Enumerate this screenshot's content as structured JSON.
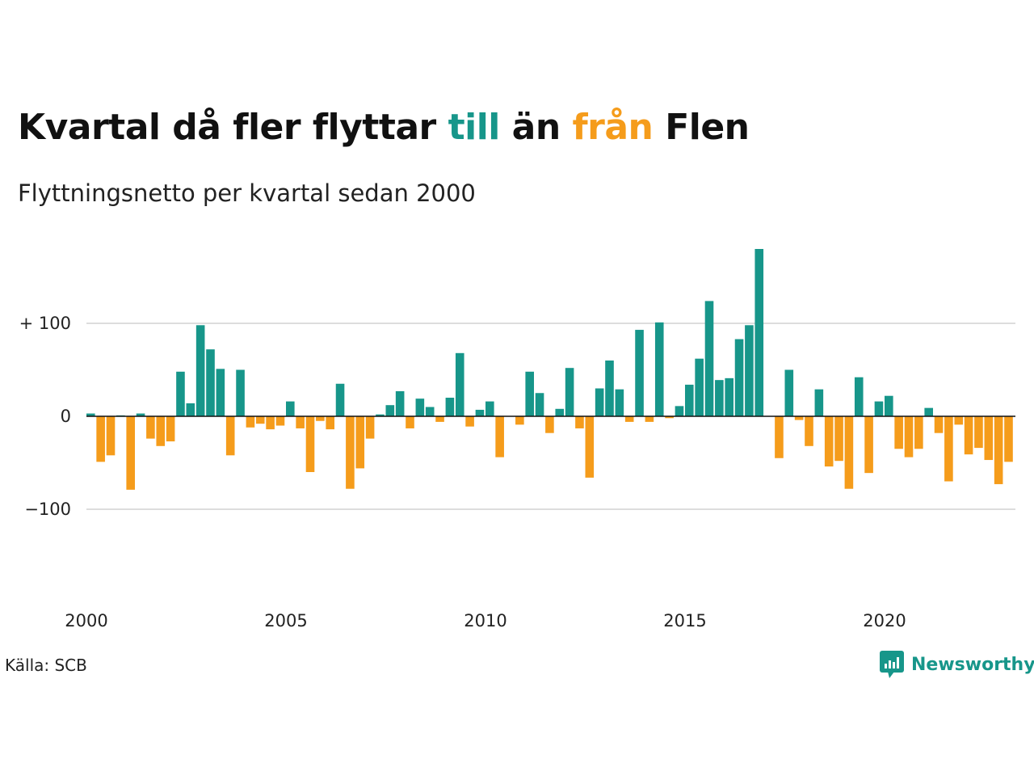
{
  "header": {
    "title_pre": "Kvartal då fler flyttar ",
    "title_till": "till",
    "title_mid": " än ",
    "title_fran": "från",
    "title_post": " Flen",
    "subtitle": "Flyttningsnetto per kvartal sedan 2000"
  },
  "footer": {
    "source": "Källa: SCB",
    "brand": "Newsworthy",
    "brand_icon": "bar-chart-speech-bubble-icon"
  },
  "colors": {
    "positive": "#17968a",
    "negative": "#f59c1b",
    "grid": "#dddddd",
    "zero_line": "#111111"
  },
  "chart_data": {
    "type": "bar",
    "title": "Kvartal då fler flyttar till än från Flen",
    "subtitle": "Flyttningsnetto per kvartal sedan 2000",
    "x_start_year": 2000,
    "periods_per_year": 4,
    "x_ticks": [
      "2000",
      "2005",
      "2010",
      "2015",
      "2020"
    ],
    "y_ticks": [
      {
        "value": 100,
        "label": "+ 100"
      },
      {
        "value": 0,
        "label": "0"
      },
      {
        "value": -100,
        "label": "−100"
      }
    ],
    "ylim": [
      -200,
      185
    ],
    "grid": true,
    "values": [
      3,
      -49,
      -42,
      1,
      -79,
      3,
      -24,
      -32,
      -27,
      48,
      14,
      98,
      72,
      51,
      -42,
      50,
      -12,
      -8,
      -14,
      -10,
      16,
      -13,
      -60,
      -5,
      -14,
      35,
      -78,
      -56,
      -24,
      2,
      12,
      27,
      -13,
      19,
      10,
      -6,
      20,
      68,
      -11,
      7,
      16,
      -44,
      0,
      -9,
      48,
      25,
      -18,
      8,
      52,
      -13,
      -66,
      30,
      60,
      29,
      -6,
      93,
      -6,
      101,
      -2,
      11,
      34,
      62,
      124,
      39,
      41,
      83,
      98,
      180,
      0,
      -45,
      50,
      -4,
      -32,
      29,
      -54,
      -48,
      -78,
      42,
      -61,
      16,
      22,
      -35,
      -44,
      -35,
      9,
      -18,
      -70,
      -9,
      -41,
      -34,
      -47,
      -73,
      -49
    ]
  }
}
